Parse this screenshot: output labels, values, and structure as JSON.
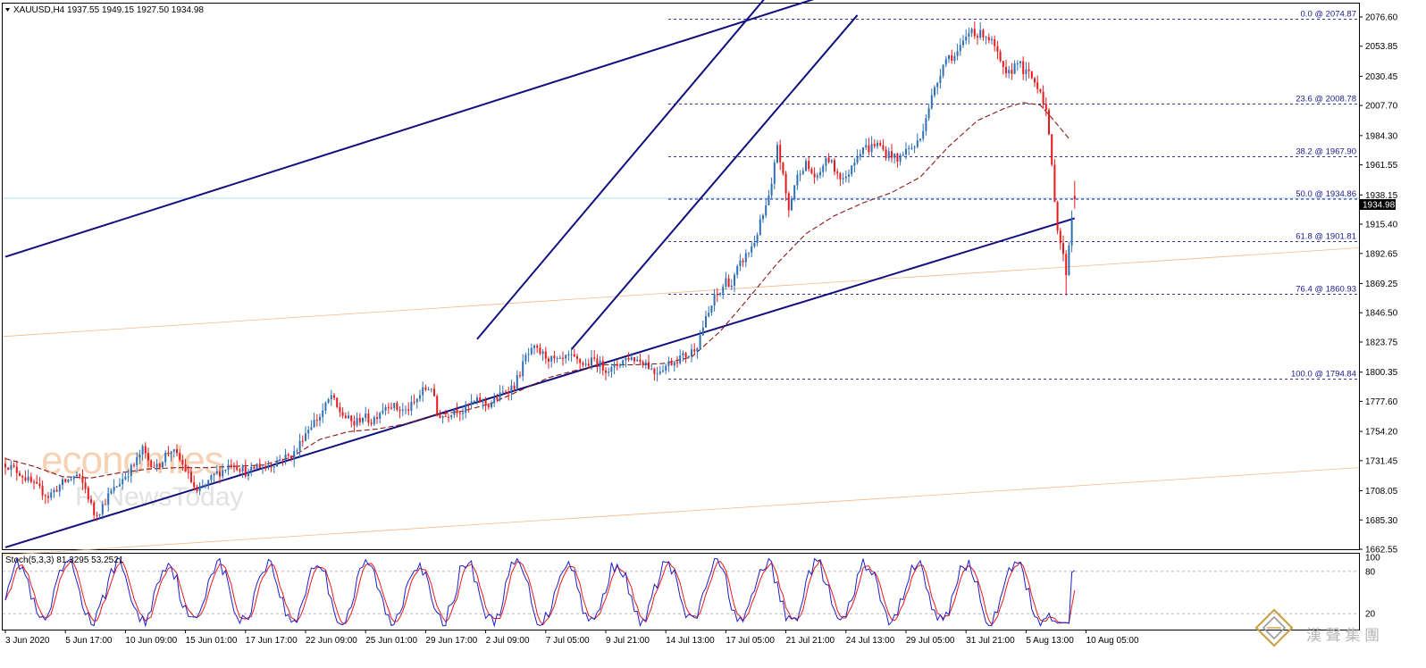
{
  "header": {
    "text": "XAUUSD,H4  1937.55 1949.15 1927.50 1934.98"
  },
  "price_tag": "1934.98",
  "stoch_header": "Stoch(5,3,3) 81.3295 53.2521",
  "watermark": {
    "line1": "economies",
    "line2": "FxNewsToday"
  },
  "brand": "漢 聲 集 團",
  "colors": {
    "bull": "#2f6fb3",
    "bear": "#e8191c",
    "channel": "#101080",
    "ma": "#8b1515",
    "fib": "#1a1a8c",
    "stoch_k": "#1e1ec8",
    "stoch_d": "#e8191c",
    "orange": "#f5b98c",
    "cyan": "#9fd8ef"
  },
  "chart_data": [
    {
      "type": "candlestick",
      "symbol": "XAUUSD",
      "timeframe": "H4",
      "ohlc_last": {
        "open": 1937.55,
        "high": 1949.15,
        "low": 1927.5,
        "close": 1934.98
      },
      "ylim": [
        1662.55,
        2087.0
      ],
      "y_ticks": [
        "2076.60",
        "2053.85",
        "2030.45",
        "2007.70",
        "1984.30",
        "1961.55",
        "1938.15",
        "1915.40",
        "1892.65",
        "1869.25",
        "1846.50",
        "1823.75",
        "1800.35",
        "1777.60",
        "1754.20",
        "1731.45",
        "1708.05",
        "1685.30",
        "1662.55"
      ],
      "x_ticks": [
        "3 Jun 2020",
        "5 Jun 17:00",
        "10 Jun 09:00",
        "15 Jun 01:00",
        "17 Jun 17:00",
        "22 Jun 09:00",
        "25 Jun 01:00",
        "29 Jun 17:00",
        "2 Jul 09:00",
        "7 Jul 05:00",
        "9 Jul 21:00",
        "14 Jul 13:00",
        "17 Jul 05:00",
        "21 Jul 21:00",
        "24 Jul 13:00",
        "29 Jul 05:00",
        "31 Jul 21:00",
        "5 Aug 13:00",
        "10 Aug 05:00"
      ],
      "close_path": [
        [
          0,
          1729
        ],
        [
          5,
          1722
        ],
        [
          10,
          1712
        ],
        [
          15,
          1704
        ],
        [
          20,
          1714
        ],
        [
          25,
          1720
        ],
        [
          28,
          1710
        ],
        [
          31,
          1690
        ],
        [
          33,
          1693
        ],
        [
          36,
          1704
        ],
        [
          39,
          1712
        ],
        [
          42,
          1720
        ],
        [
          45,
          1728
        ],
        [
          48,
          1740
        ],
        [
          50,
          1732
        ],
        [
          53,
          1726
        ],
        [
          56,
          1736
        ],
        [
          58,
          1740
        ],
        [
          61,
          1732
        ],
        [
          64,
          1720
        ],
        [
          67,
          1706
        ],
        [
          70,
          1712
        ],
        [
          73,
          1720
        ],
        [
          76,
          1724
        ],
        [
          79,
          1730
        ],
        [
          82,
          1726
        ],
        [
          85,
          1721
        ],
        [
          88,
          1728
        ],
        [
          91,
          1726
        ],
        [
          94,
          1730
        ],
        [
          97,
          1734
        ],
        [
          100,
          1735
        ],
        [
          102,
          1740
        ],
        [
          104,
          1750
        ],
        [
          107,
          1760
        ],
        [
          110,
          1766
        ],
        [
          112,
          1774
        ],
        [
          114,
          1782
        ],
        [
          116,
          1772
        ],
        [
          119,
          1765
        ],
        [
          122,
          1760
        ],
        [
          125,
          1766
        ],
        [
          128,
          1762
        ],
        [
          131,
          1770
        ],
        [
          134,
          1776
        ],
        [
          137,
          1772
        ],
        [
          140,
          1770
        ],
        [
          143,
          1776
        ],
        [
          146,
          1786
        ],
        [
          149,
          1789
        ],
        [
          151,
          1768
        ],
        [
          154,
          1766
        ],
        [
          157,
          1772
        ],
        [
          160,
          1770
        ],
        [
          163,
          1776
        ],
        [
          166,
          1778
        ],
        [
          169,
          1775
        ],
        [
          172,
          1780
        ],
        [
          175,
          1786
        ],
        [
          178,
          1790
        ],
        [
          180,
          1800
        ],
        [
          182,
          1812
        ],
        [
          185,
          1818
        ],
        [
          188,
          1814
        ],
        [
          191,
          1810
        ],
        [
          194,
          1808
        ],
        [
          197,
          1812
        ],
        [
          200,
          1809
        ],
        [
          203,
          1806
        ],
        [
          206,
          1810
        ],
        [
          209,
          1804
        ],
        [
          212,
          1802
        ],
        [
          215,
          1808
        ],
        [
          218,
          1812
        ],
        [
          221,
          1810
        ],
        [
          224,
          1808
        ],
        [
          227,
          1800
        ],
        [
          230,
          1804
        ],
        [
          233,
          1808
        ],
        [
          236,
          1812
        ],
        [
          239,
          1814
        ],
        [
          242,
          1822
        ],
        [
          244,
          1836
        ],
        [
          246,
          1846
        ],
        [
          248,
          1858
        ],
        [
          250,
          1862
        ],
        [
          252,
          1872
        ],
        [
          254,
          1868
        ],
        [
          256,
          1880
        ],
        [
          258,
          1888
        ],
        [
          260,
          1894
        ],
        [
          262,
          1902
        ],
        [
          264,
          1916
        ],
        [
          266,
          1928
        ],
        [
          268,
          1944
        ],
        [
          270,
          1978
        ],
        [
          272,
          1952
        ],
        [
          274,
          1926
        ],
        [
          276,
          1946
        ],
        [
          278,
          1958
        ],
        [
          280,
          1962
        ],
        [
          282,
          1955
        ],
        [
          284,
          1950
        ],
        [
          286,
          1962
        ],
        [
          288,
          1966
        ],
        [
          290,
          1958
        ],
        [
          292,
          1953
        ],
        [
          294,
          1950
        ],
        [
          296,
          1962
        ],
        [
          298,
          1970
        ],
        [
          300,
          1976
        ],
        [
          302,
          1974
        ],
        [
          304,
          1978
        ],
        [
          306,
          1976
        ],
        [
          308,
          1970
        ],
        [
          310,
          1970
        ],
        [
          312,
          1964
        ],
        [
          314,
          1972
        ],
        [
          316,
          1974
        ],
        [
          318,
          1976
        ],
        [
          320,
          1982
        ],
        [
          322,
          2000
        ],
        [
          324,
          2014
        ],
        [
          326,
          2026
        ],
        [
          328,
          2042
        ],
        [
          330,
          2046
        ],
        [
          332,
          2046
        ],
        [
          334,
          2052
        ],
        [
          336,
          2060
        ],
        [
          338,
          2068
        ],
        [
          340,
          2062
        ],
        [
          342,
          2064
        ],
        [
          344,
          2060
        ],
        [
          346,
          2053
        ],
        [
          348,
          2040
        ],
        [
          350,
          2030
        ],
        [
          352,
          2035
        ],
        [
          354,
          2044
        ],
        [
          356,
          2034
        ],
        [
          358,
          2032
        ],
        [
          360,
          2026
        ],
        [
          362,
          2020
        ],
        [
          364,
          2004
        ],
        [
          366,
          1960
        ],
        [
          368,
          1912
        ],
        [
          370,
          1890
        ],
        [
          371,
          1878
        ],
        [
          373,
          1922
        ],
        [
          374,
          1935
        ]
      ],
      "ma_path": [
        [
          0,
          1733
        ],
        [
          10,
          1727
        ],
        [
          20,
          1719
        ],
        [
          30,
          1718
        ],
        [
          40,
          1722
        ],
        [
          50,
          1725
        ],
        [
          60,
          1726
        ],
        [
          70,
          1726
        ],
        [
          80,
          1727
        ],
        [
          90,
          1728
        ],
        [
          100,
          1734
        ],
        [
          110,
          1748
        ],
        [
          120,
          1754
        ],
        [
          130,
          1756
        ],
        [
          140,
          1760
        ],
        [
          150,
          1767
        ],
        [
          160,
          1770
        ],
        [
          170,
          1776
        ],
        [
          180,
          1786
        ],
        [
          190,
          1796
        ],
        [
          200,
          1802
        ],
        [
          210,
          1806
        ],
        [
          220,
          1806
        ],
        [
          230,
          1807
        ],
        [
          240,
          1812
        ],
        [
          250,
          1832
        ],
        [
          260,
          1858
        ],
        [
          270,
          1885
        ],
        [
          280,
          1908
        ],
        [
          290,
          1922
        ],
        [
          300,
          1932
        ],
        [
          310,
          1940
        ],
        [
          320,
          1952
        ],
        [
          330,
          1976
        ],
        [
          340,
          1996
        ],
        [
          350,
          2006
        ],
        [
          356,
          2010
        ],
        [
          362,
          2008
        ],
        [
          366,
          1998
        ],
        [
          372,
          1982
        ]
      ],
      "fibonacci": [
        {
          "label": "0.0 @ 2074.87",
          "price": 2074.87
        },
        {
          "label": "23.6 @ 2008.78",
          "price": 2008.78
        },
        {
          "label": "38.2 @ 1967.90",
          "price": 1967.9
        },
        {
          "label": "50.0 @ 1934.86",
          "price": 1934.86
        },
        {
          "label": "61.8 @ 1901.81",
          "price": 1901.81
        },
        {
          "label": "76.4 @ 1860.93",
          "price": 1860.93
        },
        {
          "label": "100.0 @ 1794.84",
          "price": 1794.84
        }
      ],
      "trendlines": [
        {
          "name": "long-upper",
          "from": [
            0,
            1890
          ],
          "to": [
            285,
            2092
          ]
        },
        {
          "name": "long-lower",
          "from": [
            0,
            1664
          ],
          "to": [
            374,
            1920
          ]
        },
        {
          "name": "channel-upper",
          "from": [
            165,
            1826
          ],
          "to": [
            266,
            2092
          ]
        },
        {
          "name": "channel-lower",
          "from": [
            198,
            1818
          ],
          "to": [
            298,
            2078
          ]
        }
      ]
    },
    {
      "type": "line",
      "name": "Stoch(5,3,3)",
      "values_shown": {
        "k": 81.3295,
        "d": 53.2521
      },
      "ylim": [
        0,
        100
      ],
      "levels": [
        20,
        80
      ],
      "y_ticks": [
        "100",
        "80",
        "20"
      ]
    }
  ]
}
